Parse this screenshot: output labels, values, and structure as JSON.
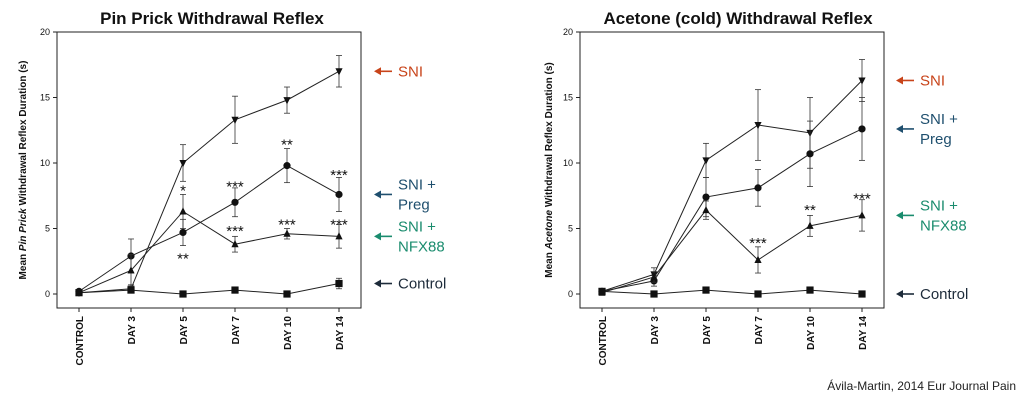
{
  "colors": {
    "SNI": "#c8441a",
    "SNI + Preg": "#1f4f6e",
    "SNI + NFX88": "#1a8c6e",
    "Control": "#1d2b3a"
  },
  "credit": "Ávila-Martin, 2014 Eur Journal Pain",
  "chart_data": [
    {
      "type": "line",
      "title": "Pin Prick Withdrawal Reflex",
      "ylabel_parts": [
        "Mean ",
        "Pin Prick",
        " Withdrawal Reflex Duration (s)"
      ],
      "xlabel": "",
      "categories": [
        "CONTROL",
        "DAY 3",
        "DAY 5",
        "DAY 7",
        "DAY 10",
        "DAY 14"
      ],
      "ylim": [
        0,
        20
      ],
      "yticks": [
        0,
        5,
        10,
        15,
        20
      ],
      "series": [
        {
          "name": "SNI",
          "marker": "tri-down",
          "values": [
            0.1,
            0.4,
            10.0,
            13.3,
            14.8,
            17.0
          ],
          "err": [
            0.1,
            0.3,
            1.4,
            1.8,
            1.0,
            1.2
          ]
        },
        {
          "name": "SNI + Preg",
          "legend_lines": [
            "SNI +",
            "Preg"
          ],
          "marker": "circle",
          "values": [
            0.2,
            2.9,
            4.7,
            7.0,
            9.8,
            7.6
          ],
          "err": [
            0.1,
            1.3,
            1.0,
            1.1,
            1.3,
            1.3
          ]
        },
        {
          "name": "SNI + NFX88",
          "legend_lines": [
            "SNI +",
            "NFX88"
          ],
          "marker": "tri-up",
          "values": [
            0.1,
            1.8,
            6.3,
            3.8,
            4.6,
            4.4
          ],
          "err": [
            0.1,
            1.2,
            1.3,
            0.6,
            0.4,
            0.9
          ]
        },
        {
          "name": "Control",
          "marker": "square",
          "values": [
            0.1,
            0.3,
            0.0,
            0.3,
            0.0,
            0.8
          ],
          "err": [
            0.05,
            0.1,
            0.05,
            0.1,
            0.05,
            0.4
          ]
        }
      ],
      "annotations": [
        {
          "text": "*",
          "category": "DAY 5",
          "y": 7.9
        },
        {
          "text": "**",
          "category": "DAY 5",
          "y": 2.7
        },
        {
          "text": "***",
          "category": "DAY 7",
          "y": 8.2
        },
        {
          "text": "***",
          "category": "DAY 7",
          "y": 4.8
        },
        {
          "text": "**",
          "category": "DAY 10",
          "y": 11.4
        },
        {
          "text": "***",
          "category": "DAY 10",
          "y": 5.3
        },
        {
          "text": "***",
          "category": "DAY 14",
          "y": 9.1
        },
        {
          "text": "***",
          "category": "DAY 14",
          "y": 5.3
        }
      ]
    },
    {
      "type": "line",
      "title": "Acetone (cold) Withdrawal Reflex",
      "ylabel_parts": [
        "Mean ",
        "Acetone",
        " Withdrawal Reflex Duration (s)"
      ],
      "xlabel": "",
      "categories": [
        "CONTROL",
        "DAY 3",
        "DAY 5",
        "DAY 7",
        "DAY 10",
        "DAY 14"
      ],
      "ylim": [
        0,
        20
      ],
      "yticks": [
        0,
        5,
        10,
        15,
        20
      ],
      "series": [
        {
          "name": "SNI",
          "marker": "tri-down",
          "values": [
            0.2,
            1.5,
            10.2,
            12.9,
            12.3,
            16.3
          ],
          "err": [
            0.1,
            0.5,
            1.3,
            2.7,
            2.7,
            1.6
          ]
        },
        {
          "name": "SNI + Preg",
          "legend_lines": [
            "SNI +",
            "Preg"
          ],
          "marker": "circle",
          "values": [
            0.2,
            1.0,
            7.4,
            8.1,
            10.7,
            12.6
          ],
          "err": [
            0.1,
            0.4,
            1.5,
            1.4,
            2.5,
            2.4
          ]
        },
        {
          "name": "SNI + NFX88",
          "legend_lines": [
            "SNI +",
            "NFX88"
          ],
          "marker": "tri-up",
          "values": [
            0.1,
            1.3,
            6.4,
            2.6,
            5.2,
            6.0
          ],
          "err": [
            0.1,
            0.4,
            0.7,
            1.0,
            0.8,
            1.2
          ]
        },
        {
          "name": "Control",
          "marker": "square",
          "values": [
            0.2,
            0.0,
            0.3,
            0.0,
            0.3,
            0.0
          ],
          "err": [
            0.05,
            0.05,
            0.1,
            0.05,
            0.1,
            0.05
          ]
        }
      ],
      "annotations": [
        {
          "text": "***",
          "category": "DAY 7",
          "y": 3.9
        },
        {
          "text": "**",
          "category": "DAY 10",
          "y": 6.4
        },
        {
          "text": "***",
          "category": "DAY 14",
          "y": 7.3
        }
      ]
    }
  ]
}
